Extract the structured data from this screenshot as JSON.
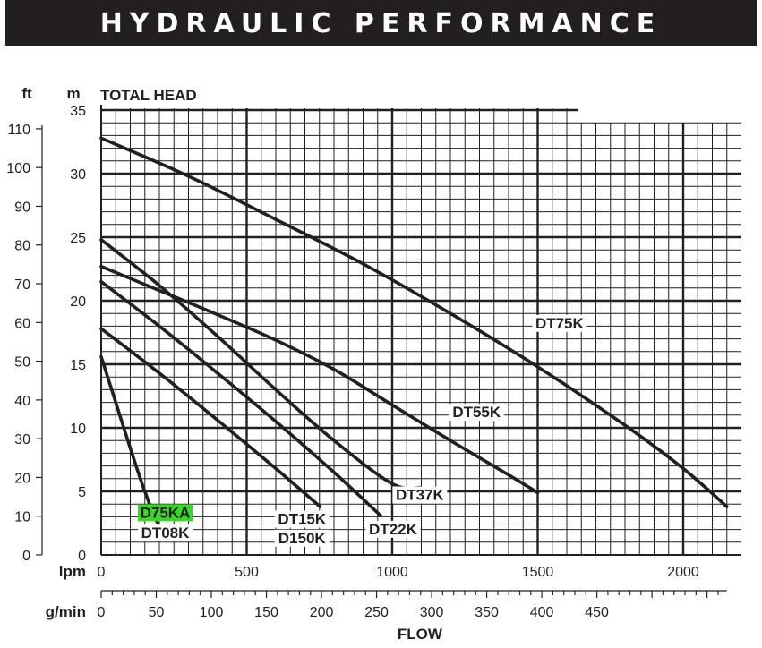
{
  "header": {
    "title": "HYDRAULIC PERFORMANCE"
  },
  "chart_data": {
    "type": "line",
    "title": "HYDRAULIC PERFORMANCE",
    "ylabel": "TOTAL HEAD",
    "xlabel": "FLOW",
    "units": {
      "head_ft": "ft",
      "head_m": "m",
      "flow_lpm": "lpm",
      "flow_gpm": "g/min"
    },
    "xlim_lpm": [
      0,
      2150
    ],
    "ylim_m": [
      0,
      35
    ],
    "x_ticks_lpm": [
      "0",
      "500",
      "1000",
      "1500",
      "2000"
    ],
    "x_ticks_gpm": [
      "0",
      "50",
      "100",
      "150",
      "200",
      "250",
      "300",
      "350",
      "400",
      "450"
    ],
    "y_ticks_m": [
      "0",
      "5",
      "10",
      "15",
      "20",
      "25",
      "30",
      "35"
    ],
    "y_ticks_ft": [
      "0",
      "10",
      "20",
      "30",
      "40",
      "50",
      "60",
      "70",
      "80",
      "90",
      "100",
      "110"
    ],
    "grid": true,
    "series": [
      {
        "name": "D75KA",
        "highlight": "#3ad62a",
        "points_lpm_m": [
          [
            0,
            15.6
          ],
          [
            50,
            12.0
          ],
          [
            100,
            8.4
          ],
          [
            150,
            5.0
          ],
          [
            200,
            2.3
          ],
          [
            257,
            1.5
          ]
        ]
      },
      {
        "name": "DT08K",
        "points_lpm_m": [
          [
            0,
            15.6
          ],
          [
            50,
            12.0
          ],
          [
            100,
            8.4
          ],
          [
            150,
            5.0
          ],
          [
            200,
            2.3
          ],
          [
            257,
            1.5
          ]
        ]
      },
      {
        "name": "DT15K",
        "points_lpm_m": [
          [
            0,
            17.8
          ],
          [
            200,
            14.3
          ],
          [
            400,
            10.6
          ],
          [
            600,
            6.8
          ],
          [
            752,
            3.8
          ]
        ]
      },
      {
        "name": "D150K",
        "points_lpm_m": [
          [
            0,
            17.8
          ],
          [
            200,
            14.3
          ],
          [
            400,
            10.6
          ],
          [
            600,
            6.8
          ],
          [
            752,
            3.8
          ]
        ]
      },
      {
        "name": "DT22K",
        "points_lpm_m": [
          [
            0,
            21.5
          ],
          [
            200,
            18.0
          ],
          [
            400,
            14.3
          ],
          [
            600,
            10.5
          ],
          [
            800,
            6.5
          ],
          [
            960,
            3.1
          ]
        ]
      },
      {
        "name": "DT37K",
        "points_lpm_m": [
          [
            0,
            24.8
          ],
          [
            200,
            21.2
          ],
          [
            400,
            17.2
          ],
          [
            600,
            13.0
          ],
          [
            800,
            9.0
          ],
          [
            1000,
            5.6
          ],
          [
            1100,
            5.3
          ]
        ]
      },
      {
        "name": "DT55K",
        "points_lpm_m": [
          [
            0,
            22.7
          ],
          [
            200,
            20.8
          ],
          [
            400,
            18.9
          ],
          [
            600,
            16.9
          ],
          [
            800,
            14.6
          ],
          [
            1000,
            11.8
          ],
          [
            1200,
            9.0
          ],
          [
            1400,
            6.3
          ],
          [
            1500,
            4.9
          ]
        ]
      },
      {
        "name": "DT75K",
        "points_lpm_m": [
          [
            0,
            32.8
          ],
          [
            300,
            29.8
          ],
          [
            600,
            26.4
          ],
          [
            900,
            22.9
          ],
          [
            1200,
            19.0
          ],
          [
            1500,
            14.8
          ],
          [
            1800,
            10.2
          ],
          [
            2000,
            6.8
          ],
          [
            2150,
            3.8
          ]
        ]
      }
    ],
    "curve_labels": [
      "DT75K",
      "DT55K",
      "DT37K",
      "DT22K",
      "DT15K",
      "D150K",
      "D75KA",
      "DT08K"
    ]
  }
}
